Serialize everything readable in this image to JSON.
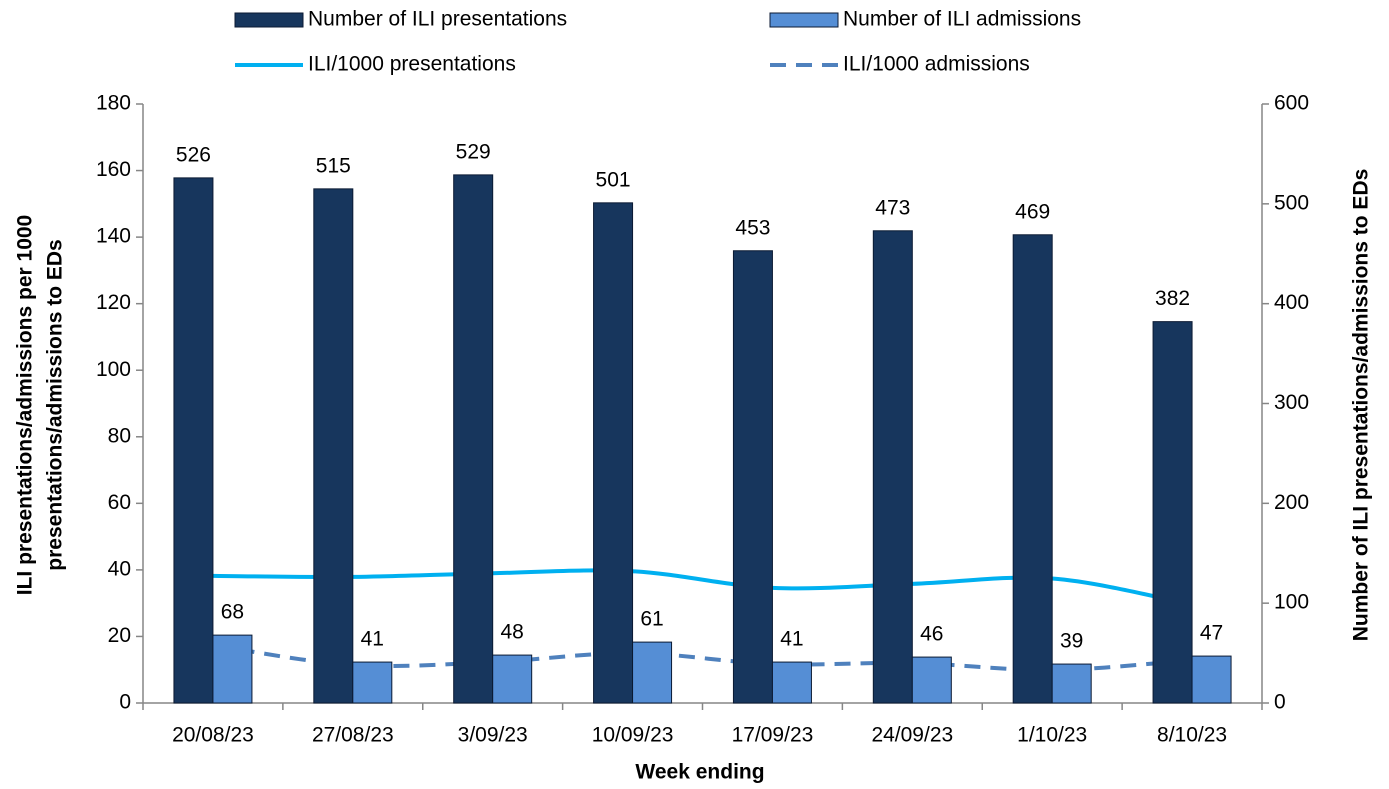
{
  "chart_data": {
    "type": "combo",
    "x_label": "Week ending",
    "y_label": [
      "ILI presentations/admissions  per 1000",
      "presentations/admissions to EDs"
    ],
    "y2_label": "Number of ILI presentations/admissions to EDs",
    "categories": [
      "20/08/23",
      "27/08/23",
      "3/09/23",
      "10/09/23",
      "17/09/23",
      "24/09/23",
      "1/10/23",
      "8/10/23"
    ],
    "series": [
      {
        "name": "Number of ILI presentations",
        "type": "bar",
        "axis": "y2",
        "color": "#17365d",
        "values": [
          526,
          515,
          529,
          501,
          453,
          473,
          469,
          382
        ]
      },
      {
        "name": "Number of ILI admissions",
        "type": "bar",
        "axis": "y2",
        "color": "#558ed5",
        "values": [
          68,
          41,
          48,
          61,
          41,
          46,
          39,
          47
        ]
      },
      {
        "name": "ILI/1000 presentations",
        "type": "line",
        "color": "#00b0f0",
        "dashed": false,
        "values": [
          38.2,
          37.9,
          39.0,
          39.6,
          34.6,
          35.8,
          37.4,
          29.6
        ]
      },
      {
        "name": "ILI/1000 admissions",
        "type": "line",
        "color": "#4f81bd",
        "dashed": true,
        "values": [
          17.4,
          11.4,
          12.3,
          15.0,
          11.7,
          12.0,
          9.9,
          12.9
        ]
      }
    ],
    "ylim": [
      0,
      180
    ],
    "yticks": [
      0,
      20,
      40,
      60,
      80,
      100,
      120,
      140,
      160,
      180
    ],
    "y2lim": [
      0,
      600
    ],
    "y2ticks": [
      0,
      100,
      200,
      300,
      400,
      500,
      600
    ],
    "grid": false
  }
}
